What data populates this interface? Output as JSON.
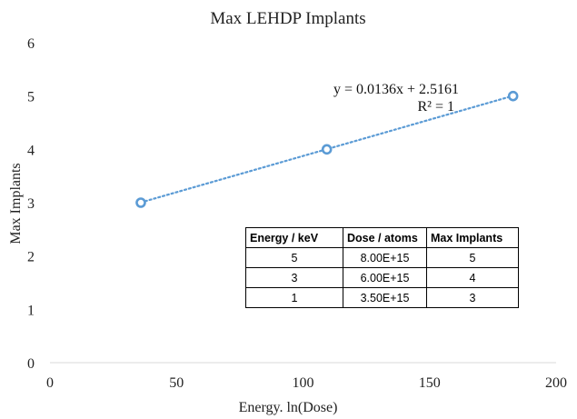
{
  "chart_data": {
    "type": "scatter",
    "title": "Max LEHDP Implants",
    "xlabel": "Energy. ln(Dose)",
    "ylabel": "Max Implants",
    "xlim": [
      0,
      200
    ],
    "ylim": [
      0,
      6
    ],
    "xticks": [
      0,
      50,
      100,
      150,
      200
    ],
    "yticks": [
      0,
      1,
      2,
      3,
      4,
      5,
      6
    ],
    "grid": false,
    "series": [
      {
        "x": [
          35.9,
          109.4,
          183.0
        ],
        "y": [
          3,
          4,
          5
        ],
        "color": "#5b9bd5"
      }
    ],
    "trendline": {
      "type": "linear",
      "slope": 0.0136,
      "intercept": 2.5161,
      "color": "#5b9bd5",
      "style": "dotted",
      "equation": "y = 0.0136x + 2.5161",
      "r2": "R² = 1"
    }
  },
  "table": {
    "headers": [
      "Energy / keV",
      "Dose / atoms",
      "Max Implants"
    ],
    "rows": [
      [
        "5",
        "8.00E+15",
        "5"
      ],
      [
        "3",
        "6.00E+15",
        "4"
      ],
      [
        "1",
        "3.50E+15",
        "3"
      ]
    ]
  }
}
